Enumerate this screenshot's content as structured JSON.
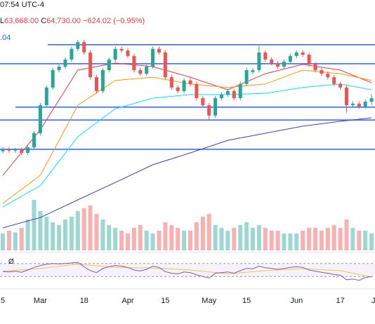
{
  "header": {
    "time": "07:54 UTC-4",
    "low_label": "L",
    "low": "63,668.00",
    "close_label": "C",
    "close": "64,730.00",
    "change": "−624.02 (−0.95%)",
    "fragment": ".04"
  },
  "chart_data": {
    "type": "candlestick",
    "open": [
      56500,
      56800,
      56600,
      56700,
      56250,
      57100,
      59300,
      63650,
      66400,
      69100,
      69650,
      70750,
      72400,
      73450,
      71850,
      68000,
      65850,
      69100,
      70750,
      72400,
      72150,
      71300,
      69100,
      68550,
      69650,
      72400,
      71850,
      68000,
      66400,
      65850,
      67500,
      66950,
      64750,
      63650,
      62050,
      64750,
      65300,
      65850,
      64750,
      66950,
      68800,
      69100,
      71850,
      70750,
      70200,
      69650,
      70400,
      71300,
      71850,
      71500,
      70000,
      69100,
      68550,
      68000,
      66950,
      66400,
      63650,
      63900,
      63450,
      64200
    ],
    "high": [
      57150,
      57150,
      57050,
      57050,
      57450,
      59650,
      64000,
      66750,
      69450,
      70000,
      71100,
      72750,
      73800,
      73800,
      72200,
      68350,
      69450,
      71100,
      72750,
      72750,
      72500,
      71650,
      69450,
      70000,
      72750,
      72750,
      72200,
      68350,
      66750,
      67850,
      67850,
      67300,
      65100,
      64000,
      65100,
      65650,
      66200,
      66200,
      67300,
      69450,
      69450,
      72900,
      72200,
      71100,
      70550,
      70750,
      71650,
      72200,
      72200,
      71850,
      70350,
      69450,
      68900,
      68350,
      67300,
      66750,
      64250,
      64250,
      64550,
      65350
    ],
    "low": [
      56150,
      56250,
      56250,
      55900,
      55900,
      56750,
      58950,
      63300,
      66050,
      68750,
      69300,
      70400,
      72050,
      71500,
      67650,
      65500,
      65500,
      68750,
      70400,
      71800,
      70950,
      68750,
      68200,
      68200,
      69300,
      71500,
      67650,
      66050,
      65500,
      65500,
      66600,
      64400,
      63300,
      61300,
      61700,
      64400,
      64950,
      64400,
      64400,
      66600,
      68450,
      68750,
      70400,
      69850,
      69300,
      69300,
      70050,
      70950,
      71150,
      69650,
      68750,
      68200,
      67650,
      66600,
      66050,
      62500,
      63300,
      63100,
      63100,
      63668
    ],
    "close": [
      56800,
      56600,
      56700,
      56250,
      57100,
      59300,
      63650,
      66400,
      69100,
      69650,
      70750,
      72400,
      73450,
      71850,
      68000,
      65850,
      69100,
      70750,
      72400,
      72150,
      71300,
      69100,
      68550,
      69650,
      72400,
      71850,
      68000,
      66400,
      65850,
      67500,
      66950,
      64750,
      63650,
      62050,
      64750,
      65300,
      65850,
      64750,
      66950,
      69100,
      69100,
      71850,
      70750,
      70200,
      69650,
      70400,
      71300,
      71850,
      71500,
      70000,
      69100,
      68550,
      68000,
      66950,
      66400,
      63650,
      63900,
      63450,
      64200,
      64730
    ],
    "up_color": "#26a69a",
    "down_color": "#ef5350",
    "ylim": [
      41100,
      80000
    ],
    "xticks": [
      {
        "value": 0,
        "label": "5"
      },
      {
        "value": 6,
        "label": "Mar"
      },
      {
        "value": 13,
        "label": "18"
      },
      {
        "value": 20,
        "label": "Apr"
      },
      {
        "value": 26,
        "label": "15"
      },
      {
        "value": 33,
        "label": "May"
      },
      {
        "value": 39,
        "label": "15"
      },
      {
        "value": 47,
        "label": "Jun"
      },
      {
        "value": 54,
        "label": "17"
      },
      {
        "value": 59.3,
        "label": "J"
      }
    ],
    "levels": {
      "values": [
        73050,
        70100,
        63350,
        61350,
        56800
      ],
      "color": "#2962ff"
    },
    "moving_averages": {
      "x": [
        0,
        6,
        12,
        18,
        24,
        30,
        36,
        42,
        48,
        54,
        59
      ],
      "series": [
        {
          "color": "#f23645",
          "values": [
            52750,
            59850,
            69100,
            70200,
            69650,
            68000,
            66050,
            68550,
            70000,
            69100,
            67150
          ]
        },
        {
          "color": "#ff9800",
          "values": [
            48400,
            52750,
            63650,
            67500,
            68000,
            66950,
            66400,
            66950,
            69100,
            68550,
            67500
          ]
        },
        {
          "color": "#00e5ff",
          "values": [
            47850,
            51150,
            58750,
            63100,
            64750,
            65300,
            65300,
            65500,
            66400,
            66950,
            66050
          ]
        },
        {
          "color": "#3f3fbf",
          "values": [
            44600,
            46200,
            48950,
            51650,
            54400,
            56250,
            58200,
            59300,
            60400,
            61150,
            61700
          ]
        }
      ]
    },
    "volume": {
      "values": [
        30,
        35,
        32,
        40,
        55,
        90,
        70,
        60,
        50,
        45,
        55,
        60,
        70,
        75,
        80,
        65,
        55,
        45,
        40,
        35,
        30,
        40,
        45,
        35,
        30,
        35,
        50,
        45,
        40,
        35,
        35,
        50,
        60,
        65,
        45,
        40,
        35,
        40,
        45,
        50,
        40,
        45,
        40,
        35,
        35,
        30,
        30,
        30,
        35,
        40,
        40,
        35,
        40,
        45,
        40,
        55,
        40,
        35,
        35,
        30
      ],
      "vlim": [
        0,
        100
      ]
    },
    "rsi": {
      "label": "Ø",
      "color": "#7e57c2",
      "ylim": [
        0,
        100
      ],
      "band": [
        30,
        70
      ],
      "values": [
        45,
        44,
        46,
        43,
        50,
        58,
        64,
        68,
        70,
        69,
        70,
        72,
        74,
        60,
        48,
        42,
        55,
        60,
        64,
        62,
        58,
        50,
        47,
        52,
        62,
        58,
        45,
        40,
        38,
        44,
        42,
        35,
        30,
        25,
        40,
        42,
        44,
        40,
        48,
        55,
        54,
        62,
        57,
        55,
        52,
        55,
        58,
        60,
        58,
        50,
        46,
        43,
        40,
        36,
        34,
        20,
        22,
        18,
        26,
        30
      ],
      "signal": {
        "color": "#f4c542",
        "x": [
          0,
          6,
          12,
          18,
          24,
          30,
          36,
          42,
          48,
          54,
          59
        ],
        "values": [
          46,
          55,
          68,
          58,
          56,
          50,
          38,
          48,
          54,
          48,
          28
        ]
      }
    }
  }
}
